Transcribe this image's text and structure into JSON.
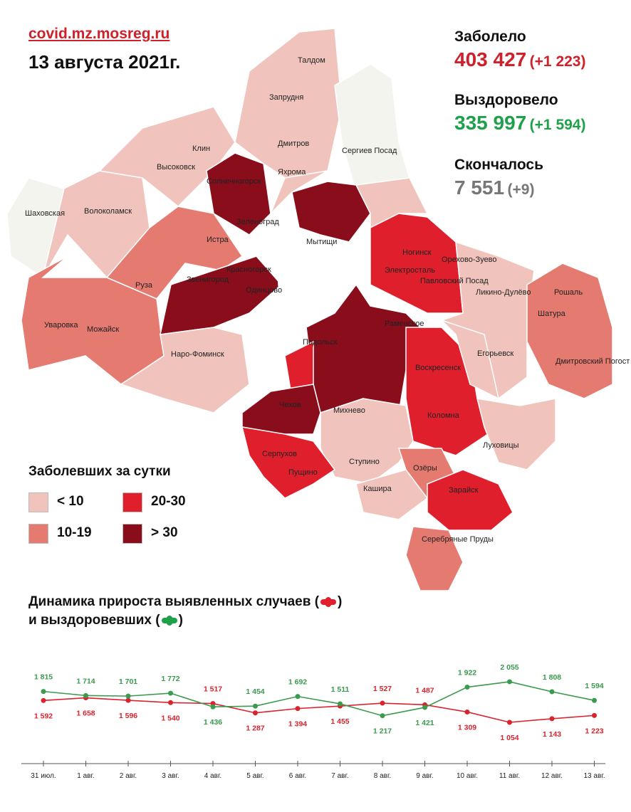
{
  "header": {
    "site": "covid.mz.mosreg.ru",
    "date": "13 августа 2021г."
  },
  "stats": {
    "infected": {
      "label": "Заболело",
      "value": "403 427",
      "delta": "(+1 223)",
      "color": "#d0202a"
    },
    "recovered": {
      "label": "Выздоровело",
      "value": "335 997",
      "delta": "(+1 594)",
      "color": "#1fa04a"
    },
    "died": {
      "label": "Скончалось",
      "value": "7 551",
      "delta": "(+9)",
      "color": "#777777"
    }
  },
  "legend": {
    "title": "Заболевших за сутки",
    "items": [
      {
        "label": "< 10",
        "color": "#f0c4bc"
      },
      {
        "label": "10-19",
        "color": "#e57a70"
      },
      {
        "label": "20-30",
        "color": "#e01f2d"
      },
      {
        "label": "> 30",
        "color": "#8a0d1b"
      }
    ]
  },
  "map": {
    "towns": [
      "Талдом",
      "Запрудня",
      "Дмитров",
      "Яхрома",
      "Сергиев Посад",
      "Клин",
      "Высоковск",
      "Солнечногорск",
      "Шаховская",
      "Волоколамск",
      "Зеленоград",
      "Мытищи",
      "Истра",
      "Ногинск",
      "Электросталь",
      "Орехово-Зуево",
      "Красногорск",
      "Звенигород",
      "Одинцово",
      "Павловский Посад",
      "Ликино-Дулёво",
      "Рошаль",
      "Руза",
      "Шатура",
      "Уваровка",
      "Можайск",
      "Раменское",
      "Наро-Фоминск",
      "Егорьевск",
      "Дмитровский Погост",
      "Воскресенск",
      "Подольск",
      "Чехов",
      "Михнево",
      "Коломна",
      "Луховицы",
      "Серпухов",
      "Ступино",
      "Озёры",
      "Пущино",
      "Кашира",
      "Зарайск",
      "Серебряные Пруды"
    ]
  },
  "chart_data": {
    "type": "line",
    "title": "Динамика прироста выявленных случаев ( ) и выздоровевших ( )",
    "title_line1": "Динамика прироста выявленных случаев (",
    "title_line2": "и выздоровевших (",
    "categories": [
      "31 июл.",
      "1 авг.",
      "2 авг.",
      "3 авг.",
      "4 авг.",
      "5 авг.",
      "6 авг.",
      "7 авг.",
      "8 авг.",
      "9 авг.",
      "10 авг.",
      "11 авг.",
      "12 авг.",
      "13 авг."
    ],
    "series": [
      {
        "key": "cases",
        "color": "#d9232d",
        "values": [
          1592,
          1658,
          1596,
          1540,
          1517,
          1287,
          1394,
          1455,
          1527,
          1487,
          1309,
          1054,
          1143,
          1223
        ],
        "labels": [
          "1 592",
          "1 658",
          "1 596",
          "1 540",
          "1 517",
          "1 287",
          "1 394",
          "1 455",
          "1 527",
          "1 487",
          "1 309",
          "1 054",
          "1 143",
          "1 223"
        ]
      },
      {
        "key": "recovered",
        "color": "#3a9a4e",
        "values": [
          1815,
          1714,
          1701,
          1772,
          1436,
          1454,
          1692,
          1511,
          1217,
          1421,
          1922,
          2055,
          1808,
          1594
        ],
        "labels": [
          "1 815",
          "1 714",
          "1 701",
          "1 772",
          "1 436",
          "1 454",
          "1 692",
          "1 511",
          "1 217",
          "1 421",
          "1 922",
          "2 055",
          "1 808",
          "1 594"
        ]
      }
    ],
    "grid": false
  }
}
